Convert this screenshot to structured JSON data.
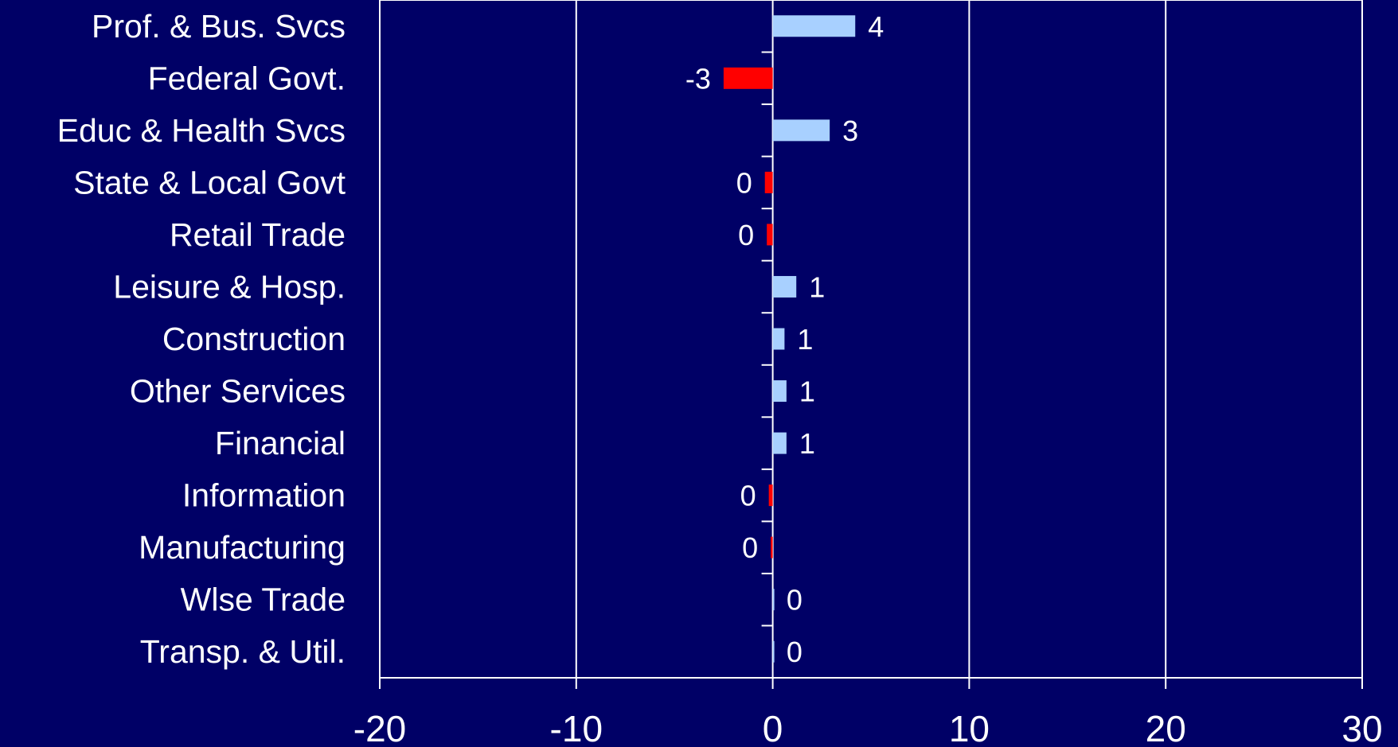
{
  "chart_data": {
    "type": "bar",
    "orientation": "horizontal",
    "title": "",
    "xlabel": "",
    "ylabel": "",
    "xlim": [
      -20,
      30
    ],
    "x_ticks": [
      -20,
      -10,
      0,
      10,
      20,
      30
    ],
    "grid": true,
    "legend": "none",
    "categories": [
      "Prof. & Bus. Svcs",
      "Federal Govt.",
      "Educ & Health Svcs",
      "State & Local Govt",
      "Retail Trade",
      "Leisure & Hosp.",
      "Construction",
      "Other Services",
      "Financial",
      "Information",
      "Manufacturing",
      "Wlse Trade",
      "Transp. & Util."
    ],
    "values": [
      4.2,
      -2.5,
      2.9,
      -0.4,
      -0.3,
      1.2,
      0.6,
      0.7,
      0.7,
      -0.2,
      -0.1,
      0.05,
      0.05
    ],
    "data_labels": [
      "4",
      "-3",
      "3",
      "0",
      "0",
      "1",
      "1",
      "1",
      "1",
      "0",
      "0",
      "0",
      "0"
    ],
    "colors": {
      "background": "#000066",
      "positive": "#A8D0FF",
      "negative": "#FF0000",
      "grid": "#FFFFFF",
      "text": "#FFFFFF"
    }
  }
}
